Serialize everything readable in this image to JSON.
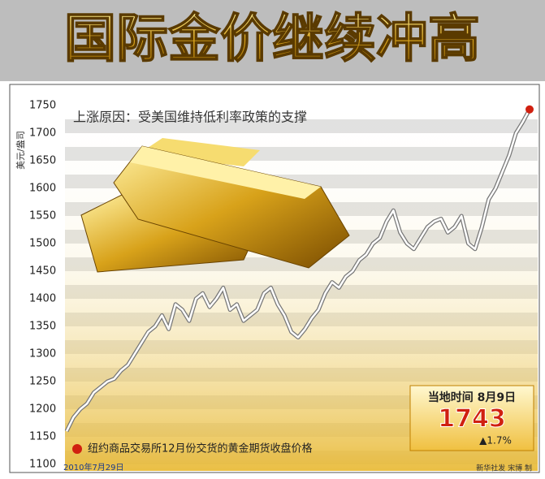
{
  "chart_data": {
    "type": "line",
    "title": "国际金价继续冲高",
    "subtitle": "上涨原因：受美国维持低利率政策的支撑",
    "y_label": "美元/盎司",
    "x_start_label": "2010年7月29日",
    "note": "纽约商品交易所12月份交货的黄金期货收盘价格",
    "end_box": {
      "date": "当地时间 8月9日",
      "value": 1743,
      "change": "▲1.7%"
    },
    "source": "新华社发 宋博 制",
    "color": "#ffffff",
    "ylim": [
      1100,
      1750
    ],
    "yticks": [
      1100,
      1150,
      1200,
      1250,
      1300,
      1350,
      1400,
      1450,
      1500,
      1550,
      1600,
      1650,
      1700,
      1750
    ],
    "values": [
      1160,
      1185,
      1200,
      1210,
      1230,
      1240,
      1250,
      1255,
      1270,
      1280,
      1300,
      1320,
      1340,
      1350,
      1370,
      1345,
      1390,
      1380,
      1360,
      1400,
      1410,
      1385,
      1400,
      1420,
      1380,
      1390,
      1360,
      1370,
      1380,
      1410,
      1420,
      1390,
      1370,
      1340,
      1330,
      1345,
      1365,
      1380,
      1410,
      1430,
      1420,
      1440,
      1450,
      1470,
      1480,
      1500,
      1510,
      1540,
      1560,
      1520,
      1500,
      1490,
      1510,
      1530,
      1540,
      1545,
      1520,
      1530,
      1550,
      1500,
      1490,
      1530,
      1580,
      1600,
      1630,
      1660,
      1700,
      1720,
      1743
    ]
  }
}
